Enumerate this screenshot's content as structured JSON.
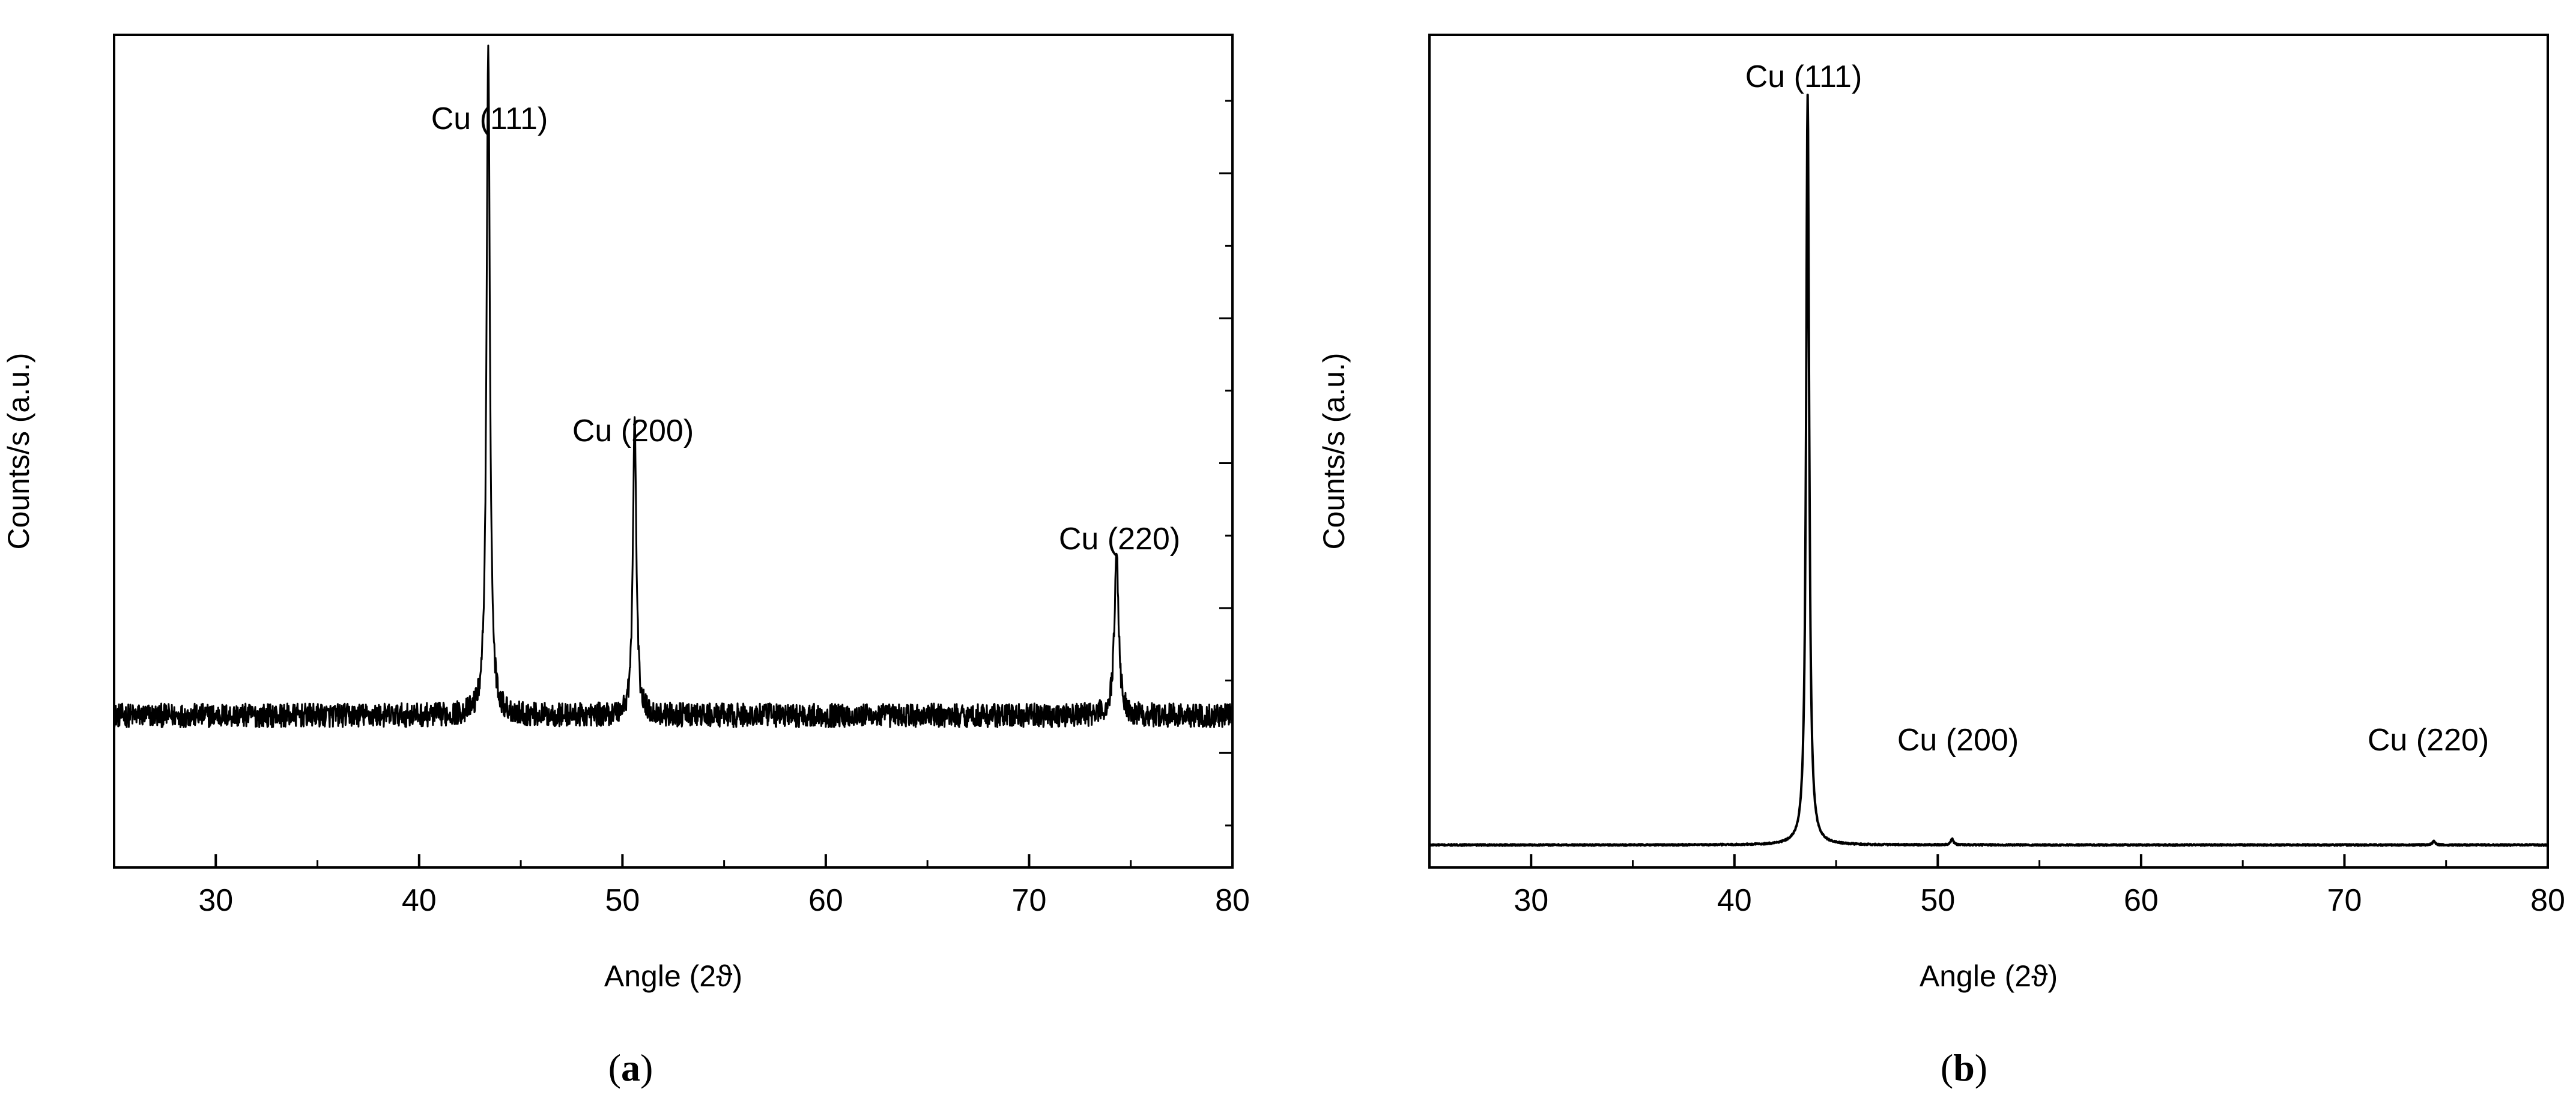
{
  "chart_data": [
    {
      "type": "line",
      "panel": "a",
      "xlabel": "Angle (2ϑ)",
      "ylabel": "Counts/s (a.u.)",
      "xlim": [
        25,
        80
      ],
      "ylim": [
        -0.18,
        1.08
      ],
      "x_ticks": [
        30,
        40,
        50,
        60,
        70,
        80
      ],
      "y_tick_labels": false,
      "minor_right_ticks": 11,
      "grid": false,
      "legend": "none",
      "baseline": 0.05,
      "noise": 0.018,
      "peaks": [
        {
          "label": "Cu (111)",
          "x": 43.4,
          "height": 1.0,
          "width": 0.18
        },
        {
          "label": "Cu (200)",
          "x": 50.6,
          "height": 0.45,
          "width": 0.18
        },
        {
          "label": "Cu (220)",
          "x": 74.3,
          "height": 0.25,
          "width": 0.22
        }
      ]
    },
    {
      "type": "line",
      "panel": "b",
      "xlabel": "Angle (2ϑ)",
      "ylabel": "Counts/s (a.u.)",
      "xlim": [
        25,
        80
      ],
      "ylim": [
        -0.03,
        1.08
      ],
      "x_ticks": [
        30,
        40,
        50,
        60,
        70,
        80
      ],
      "y_tick_labels": false,
      "grid": false,
      "legend": "none",
      "baseline": 0.0,
      "noise": 0.001,
      "peaks": [
        {
          "label": "Cu (111)",
          "x": 43.6,
          "height": 1.0,
          "width": 0.16
        },
        {
          "label": "Cu (200)",
          "x": 50.7,
          "height": 0.008,
          "width": 0.15
        },
        {
          "label": "Cu (220)",
          "x": 74.4,
          "height": 0.005,
          "width": 0.15
        }
      ]
    }
  ],
  "captions": {
    "a_open": "(",
    "a_letter": "a",
    "a_close": ")",
    "b_open": "(",
    "b_letter": "b",
    "b_close": ")"
  }
}
